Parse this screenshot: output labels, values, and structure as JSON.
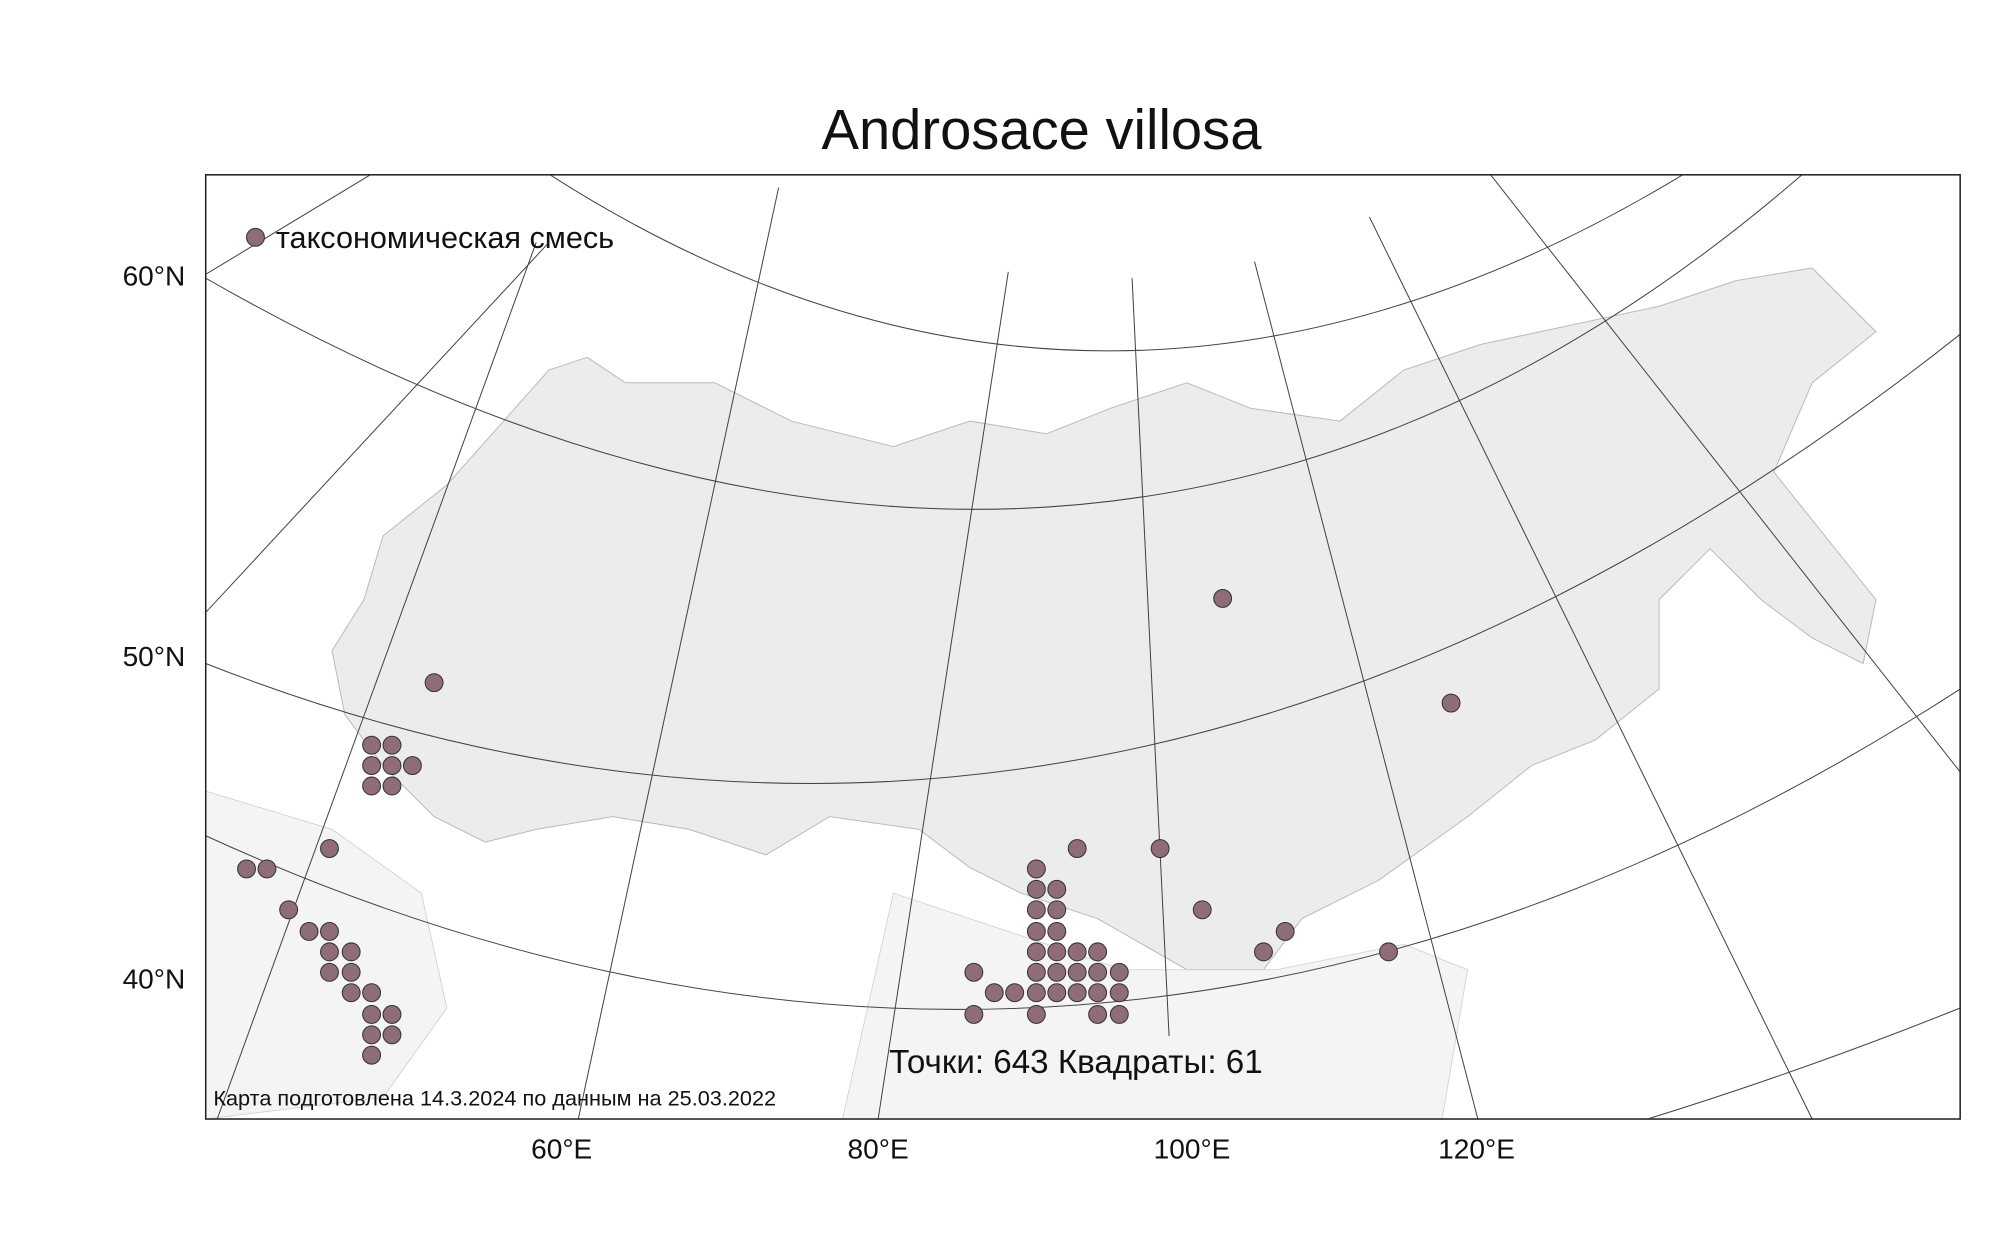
{
  "title": "Androsace villosa",
  "legend": {
    "label": "таксономическая смесь"
  },
  "axes": {
    "y_labels": [
      "60°N",
      "50°N",
      "40°N"
    ],
    "x_labels": [
      "60°E",
      "80°E",
      "100°E",
      "120°E"
    ]
  },
  "stats": "Точки: 643 Квадраты: 61",
  "footnote": "Карта подготовлена 14.3.2024 по данным на 25.03.2022"
}
